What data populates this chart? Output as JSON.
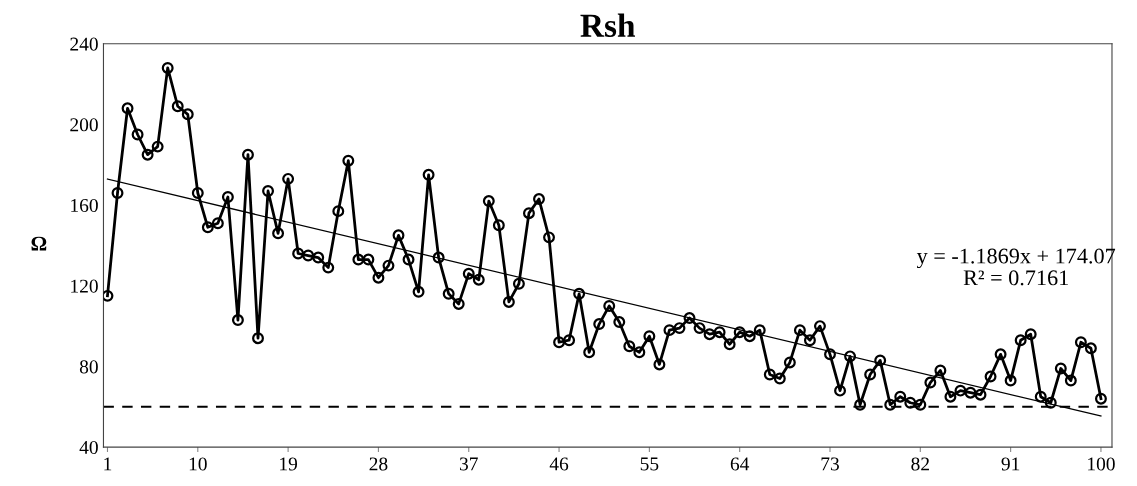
{
  "chart_data": {
    "type": "line",
    "title": "Rsh",
    "ylabel": "Ω",
    "x": [
      1,
      2,
      3,
      4,
      5,
      6,
      7,
      8,
      9,
      10,
      11,
      12,
      13,
      14,
      15,
      16,
      17,
      18,
      19,
      20,
      21,
      22,
      23,
      24,
      25,
      26,
      27,
      28,
      29,
      30,
      31,
      32,
      33,
      34,
      35,
      36,
      37,
      38,
      39,
      40,
      41,
      42,
      43,
      44,
      45,
      46,
      47,
      48,
      49,
      50,
      51,
      52,
      53,
      54,
      55,
      56,
      57,
      58,
      59,
      60,
      61,
      62,
      63,
      64,
      65,
      66,
      67,
      68,
      69,
      70,
      71,
      72,
      73,
      74,
      75,
      76,
      77,
      78,
      79,
      80,
      81,
      82,
      83,
      84,
      85,
      86,
      87,
      88,
      89,
      90,
      91,
      92,
      93,
      94,
      95,
      96,
      97,
      98,
      99,
      100
    ],
    "series": [
      {
        "color": "#000000",
        "marker": "circle",
        "line_style": "solid",
        "values": [
          115,
          166,
          208,
          195,
          185,
          189,
          228,
          209,
          205,
          166,
          149,
          151,
          164,
          103,
          185,
          94,
          167,
          146,
          173,
          136,
          135,
          134,
          129,
          157,
          182,
          133,
          133,
          124,
          130,
          145,
          133,
          117,
          175,
          134,
          116,
          111,
          126,
          123,
          162,
          150,
          112,
          121,
          156,
          163,
          144,
          92,
          93,
          116,
          87,
          101,
          110,
          102,
          90,
          87,
          95,
          81,
          98,
          99,
          104,
          99,
          96,
          97,
          91,
          97,
          95,
          98,
          76,
          74,
          82,
          98,
          93,
          100,
          86,
          68,
          85,
          61,
          76,
          83,
          61,
          65,
          62,
          61,
          72,
          78,
          65,
          68,
          67,
          66,
          75,
          86,
          73,
          93,
          96,
          65,
          62,
          79,
          73,
          92,
          89,
          64
        ]
      },
      {
        "type": "line",
        "color": "#000000",
        "marker": "none",
        "line_style": "solid",
        "x": [
          1,
          100
        ],
        "values": [
          172.9,
          55.4
        ]
      }
    ],
    "xlim": [
      0.6,
      101.1
    ],
    "xticks": [
      1,
      10,
      19,
      28,
      37,
      46,
      55,
      64,
      73,
      82,
      91,
      100
    ],
    "ylim": [
      40,
      240
    ],
    "yticks": [
      40,
      80,
      120,
      160,
      200,
      240
    ],
    "ref_lines": [
      {
        "axis": "y",
        "value": 60,
        "color": "#000000",
        "line_style": "dashed"
      }
    ],
    "annotations": [
      "y = -1.1869x + 174.07\nR² = 0.7161"
    ],
    "grid": false,
    "legend": false
  }
}
